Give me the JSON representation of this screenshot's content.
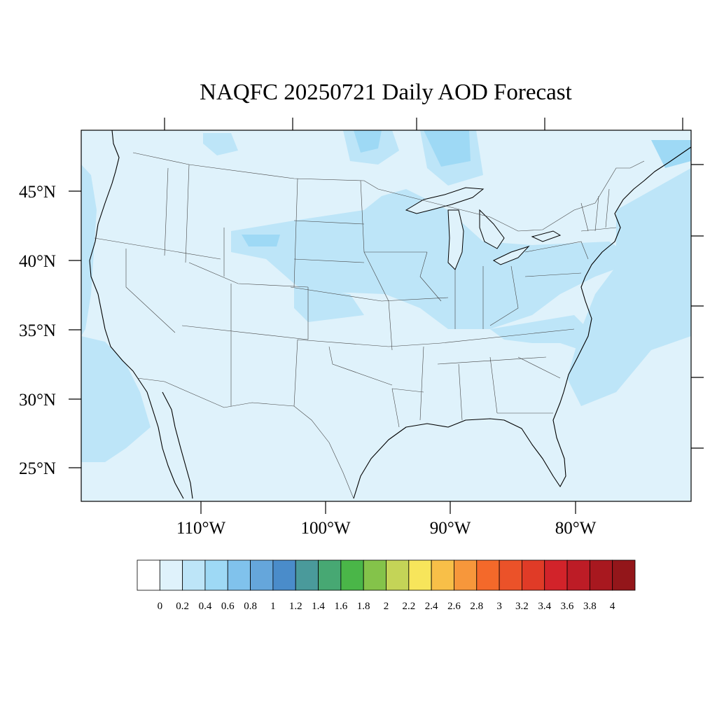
{
  "title": "NAQFC 20250721 Daily AOD Forecast",
  "colors": {
    "background_aod": "#dff2fb",
    "accent_aod": "#bde5f8",
    "highlight_aod": "#9ed9f5",
    "peak_aod": "#80c2ec"
  },
  "map": {
    "lat_labels": [
      "45°N",
      "40°N",
      "35°N",
      "30°N",
      "25°N"
    ],
    "lon_labels": [
      "110°W",
      "100°W",
      "90°W",
      "80°W"
    ]
  },
  "colorbar": {
    "labels": [
      "0",
      "0.2",
      "0.4",
      "0.6",
      "0.8",
      "1",
      "1.2",
      "1.4",
      "1.6",
      "1.8",
      "2",
      "2.2",
      "2.4",
      "2.6",
      "2.8",
      "3",
      "3.2",
      "3.4",
      "3.6",
      "3.8",
      "4"
    ],
    "colors": [
      "#ffffff",
      "#dff2fb",
      "#bde5f8",
      "#9ed9f5",
      "#80c2ec",
      "#65a6db",
      "#4a8cca",
      "#4a9a9b",
      "#47a873",
      "#4ab648",
      "#84c34a",
      "#c4d457",
      "#f7e55b",
      "#f8bf48",
      "#f7973b",
      "#f4692a",
      "#eb5229",
      "#e03b27",
      "#d2232a",
      "#bd1c26",
      "#a8181f",
      "#93161a"
    ]
  }
}
